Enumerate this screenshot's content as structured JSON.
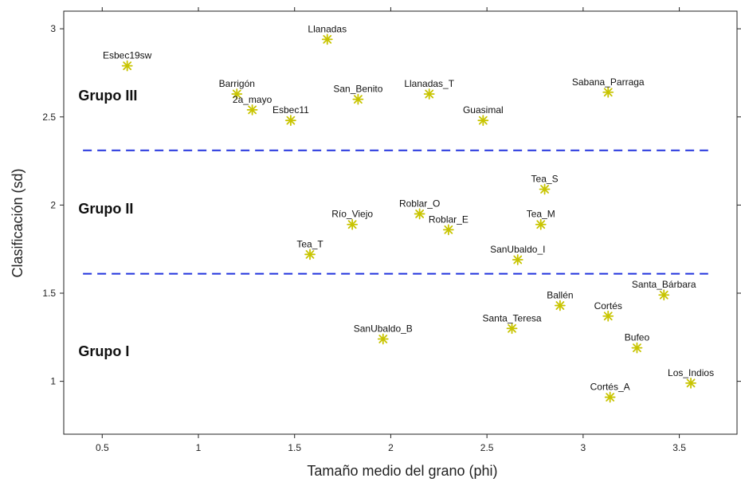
{
  "chart_data": {
    "type": "scatter",
    "xlabel": "Tamaño medio del grano (phi)",
    "ylabel": "Clasificación (sd)",
    "xlim": [
      0.3,
      3.8
    ],
    "ylim": [
      0.7,
      3.1
    ],
    "x_ticks": [
      0.5,
      1,
      1.5,
      2,
      2.5,
      3,
      3.5
    ],
    "x_tick_labels": [
      "0.5",
      "1",
      "1.5",
      "2",
      "2.5",
      "3",
      "3.5"
    ],
    "y_ticks": [
      1,
      1.5,
      2,
      2.5,
      3
    ],
    "y_tick_labels": [
      "1",
      "1.5",
      "2",
      "2.5",
      "3"
    ],
    "marker": "asterisk",
    "marker_color": "#c8c400",
    "threshold_color": "#2233dd",
    "thresholds": [
      2.31,
      1.61
    ],
    "groups": [
      {
        "label": "Grupo III",
        "x": 0.55,
        "y": 2.62
      },
      {
        "label": "Grupo II",
        "x": 0.55,
        "y": 1.98
      },
      {
        "label": "Grupo I",
        "x": 0.55,
        "y": 1.17
      }
    ],
    "points": [
      {
        "label": "Esbec19sw",
        "x": 0.63,
        "y": 2.79
      },
      {
        "label": "Llanadas",
        "x": 1.67,
        "y": 2.94
      },
      {
        "label": "Barrigón",
        "x": 1.2,
        "y": 2.63
      },
      {
        "label": "2a_mayo",
        "x": 1.28,
        "y": 2.54
      },
      {
        "label": "Esbec11",
        "x": 1.48,
        "y": 2.48
      },
      {
        "label": "San_Benito",
        "x": 1.83,
        "y": 2.6
      },
      {
        "label": "Llanadas_T",
        "x": 2.2,
        "y": 2.63
      },
      {
        "label": "Guasimal",
        "x": 2.48,
        "y": 2.48
      },
      {
        "label": "Sabana_Parraga",
        "x": 3.13,
        "y": 2.64
      },
      {
        "label": "Tea_S",
        "x": 2.8,
        "y": 2.09
      },
      {
        "label": "Roblar_O",
        "x": 2.15,
        "y": 1.95
      },
      {
        "label": "Río_Viejo",
        "x": 1.8,
        "y": 1.89
      },
      {
        "label": "Roblar_E",
        "x": 2.3,
        "y": 1.86
      },
      {
        "label": "Tea_M",
        "x": 2.78,
        "y": 1.89
      },
      {
        "label": "Tea_T",
        "x": 1.58,
        "y": 1.72
      },
      {
        "label": "SanUbaldo_I",
        "x": 2.66,
        "y": 1.69
      },
      {
        "label": "Santa_Bárbara",
        "x": 3.42,
        "y": 1.49
      },
      {
        "label": "Ballén",
        "x": 2.88,
        "y": 1.43
      },
      {
        "label": "Cortés",
        "x": 3.13,
        "y": 1.37
      },
      {
        "label": "Santa_Teresa",
        "x": 2.63,
        "y": 1.3
      },
      {
        "label": "SanUbaldo_B",
        "x": 1.96,
        "y": 1.24
      },
      {
        "label": "Bufeo",
        "x": 3.28,
        "y": 1.19
      },
      {
        "label": "Los_Indios",
        "x": 3.56,
        "y": 0.99
      },
      {
        "label": "Cortés_A",
        "x": 3.14,
        "y": 0.91
      }
    ]
  }
}
